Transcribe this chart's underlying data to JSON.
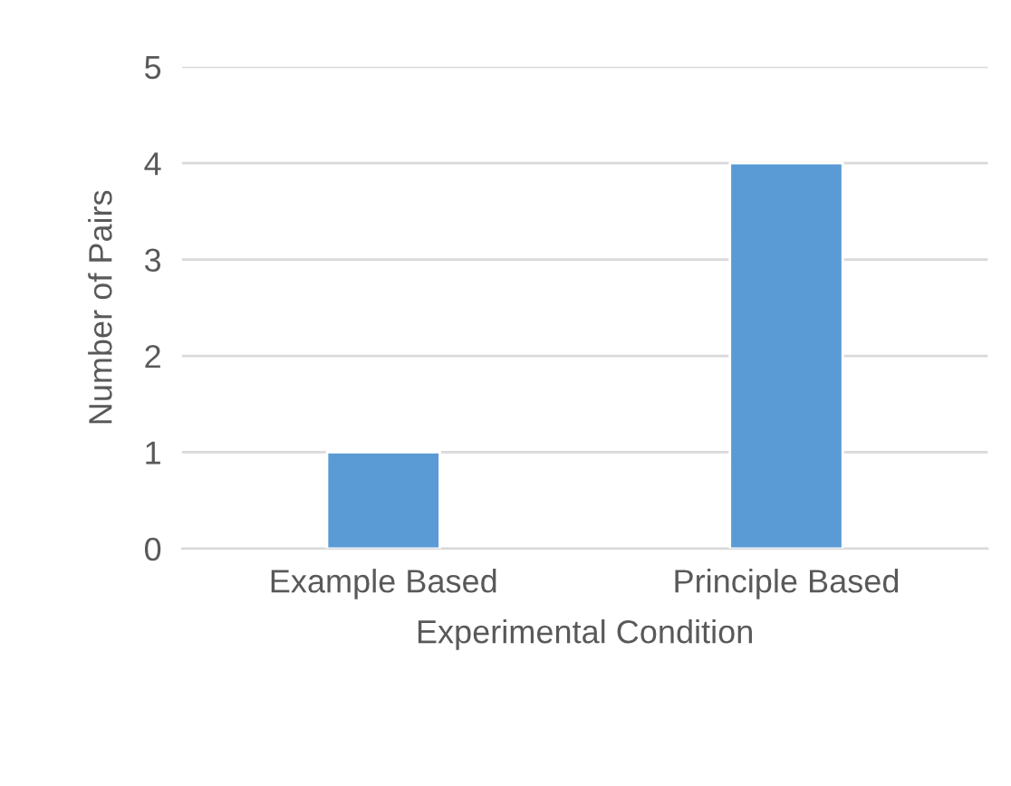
{
  "chart_data": {
    "type": "bar",
    "xlabel": "Experimental Condition",
    "ylabel": "Number of Pairs",
    "categories": [
      "Example Based",
      "Principle Based"
    ],
    "values": [
      1,
      4
    ],
    "color": "#5b9bd5",
    "ylim": [
      0,
      5
    ],
    "yticks": [
      0,
      1,
      2,
      3,
      4,
      5
    ],
    "grid": "y",
    "legend": false
  }
}
